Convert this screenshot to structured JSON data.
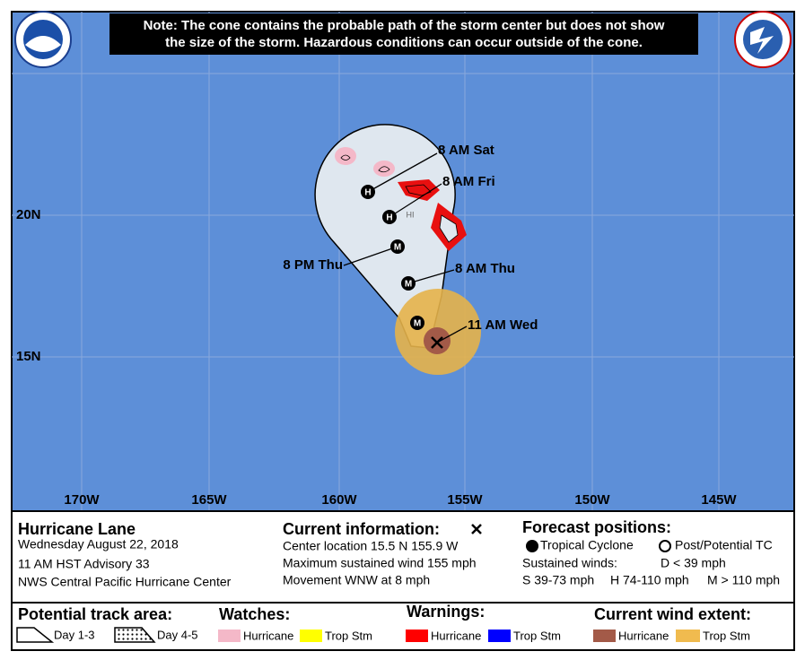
{
  "note": [
    "Note: The cone contains the probable path of the storm center but does not show",
    "the size of the storm. Hazardous conditions can occur outside of the cone."
  ],
  "map": {
    "latitude_labels": [
      "20N",
      "15N"
    ],
    "longitude_labels": [
      "170W",
      "165W",
      "160W",
      "155W",
      "150W",
      "145W"
    ],
    "island_label": "HI",
    "forecast_labels": [
      "8 AM Sat",
      "8 AM Fri",
      "8 PM Thu",
      "8 AM Thu",
      "11 AM Wed"
    ],
    "markers": [
      "H",
      "H",
      "M",
      "M",
      "M"
    ]
  },
  "storm": {
    "name": "Hurricane Lane",
    "lines": [
      "Wednesday August 22, 2018",
      "11 AM HST Advisory 33",
      "NWS Central Pacific Hurricane Center"
    ]
  },
  "current": {
    "title": "Current information:",
    "lines": [
      "Center location 15.5 N 155.9 W",
      "Maximum sustained wind 155 mph",
      "Movement WNW at 8 mph"
    ]
  },
  "forecast": {
    "title": "Forecast positions:",
    "tropical": "Tropical Cyclone",
    "post": "Post/Potential TC",
    "winds": "Sustained winds:",
    "d": "D < 39 mph",
    "s": "S 39-73 mph",
    "h": "H 74-110 mph",
    "m": "M > 110 mph"
  },
  "legend": {
    "track": {
      "title": "Potential track area:",
      "items": [
        "Day 1-3",
        "Day 4-5"
      ]
    },
    "watches": {
      "title": "Watches:",
      "items": [
        "Hurricane",
        "Trop Stm"
      ]
    },
    "warnings": {
      "title": "Warnings:",
      "items": [
        "Hurricane",
        "Trop Stm"
      ]
    },
    "wind": {
      "title": "Current wind extent:",
      "items": [
        "Hurricane",
        "Trop Stm"
      ]
    }
  }
}
